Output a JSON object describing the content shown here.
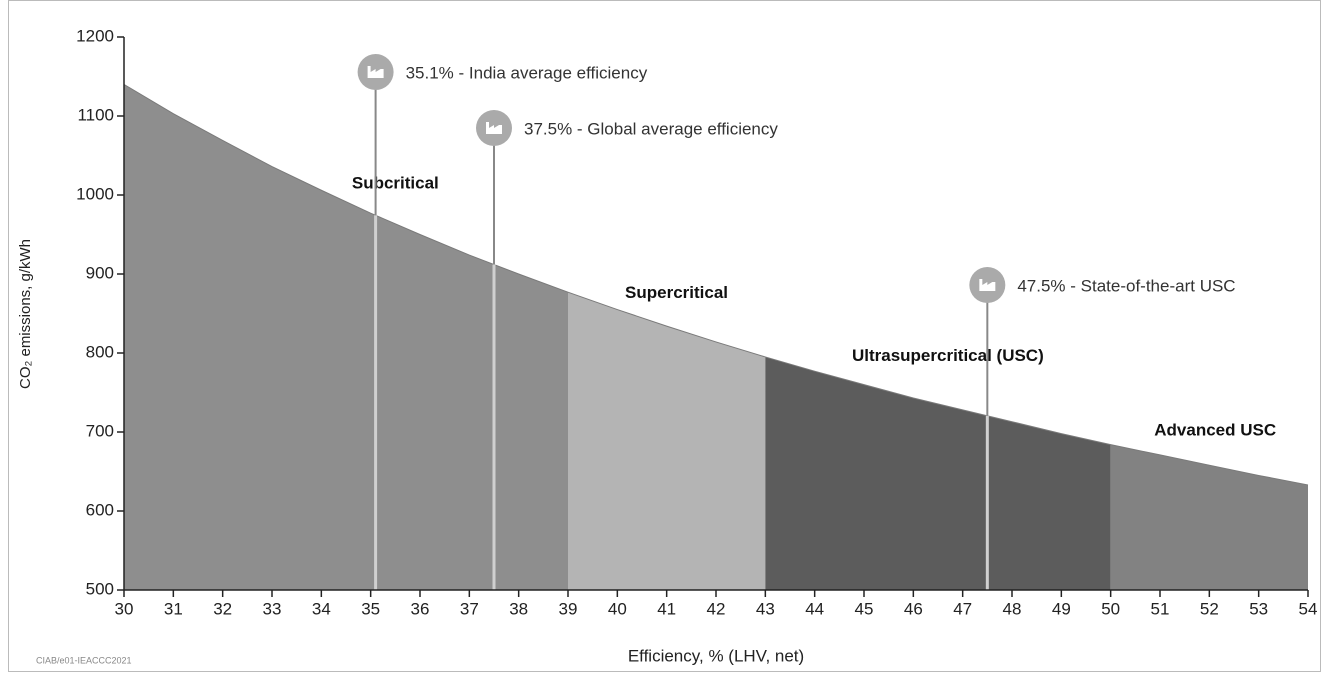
{
  "chart_data": {
    "type": "area",
    "x": [
      30,
      31,
      32,
      33,
      34,
      35,
      36,
      37,
      38,
      39,
      40,
      41,
      42,
      43,
      44,
      45,
      46,
      47,
      48,
      49,
      50,
      51,
      52,
      53,
      54
    ],
    "values": [
      1140,
      1103,
      1069,
      1036,
      1006,
      977,
      950,
      924,
      900,
      877,
      855,
      834,
      814,
      795,
      777,
      760,
      743,
      728,
      713,
      698,
      684,
      671,
      658,
      645,
      633
    ],
    "xlim": [
      30,
      54
    ],
    "xticks": [
      30,
      31,
      32,
      33,
      34,
      35,
      36,
      37,
      38,
      39,
      40,
      41,
      42,
      43,
      44,
      45,
      46,
      47,
      48,
      49,
      50,
      51,
      52,
      53,
      54
    ],
    "ylim": [
      500,
      1200
    ],
    "yticks": [
      500,
      600,
      700,
      800,
      900,
      1000,
      1100,
      1200
    ],
    "xlabel": "Efficiency, % (LHV, net)",
    "ylabel": "CO₂ emissions, g/kWh",
    "regions": [
      {
        "name": "Subcritical",
        "from": 30,
        "to": 39,
        "color": "#8e8e8e"
      },
      {
        "name": "Supercritical",
        "from": 39,
        "to": 43,
        "color": "#b4b4b4"
      },
      {
        "name": "Ultrasupercritical (USC)",
        "from": 43,
        "to": 50,
        "color": "#5c5c5c"
      },
      {
        "name": "Advanced USC",
        "from": 50,
        "to": 54,
        "color": "#828282"
      }
    ],
    "markers": [
      {
        "x": 35.1,
        "label": "35.1% - India average efficiency"
      },
      {
        "x": 37.5,
        "label": "37.5% - Global average efficiency"
      },
      {
        "x": 47.5,
        "label": "47.5% - State-of-the-art USC"
      }
    ],
    "footnote": "CIAB/e01-IEACCC2021"
  }
}
